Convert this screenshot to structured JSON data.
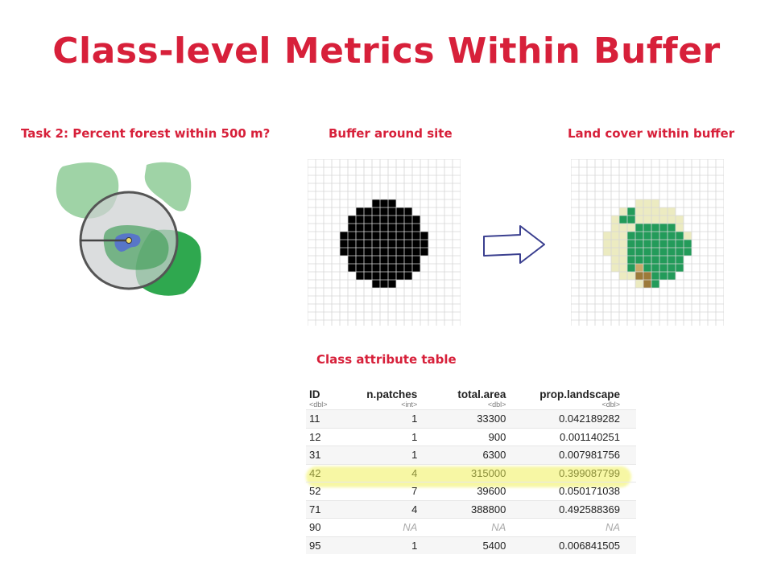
{
  "title": "Class-level Metrics Within Buffer",
  "task_label": "Task 2: Percent forest within 500 m?",
  "buffer_label": "Buffer around site",
  "landcover_label": "Land cover within buffer",
  "table_label": "Class attribute table",
  "table": {
    "columns": [
      {
        "name": "ID",
        "type": "<dbl>"
      },
      {
        "name": "n.patches",
        "type": "<int>"
      },
      {
        "name": "total.area",
        "type": "<dbl>"
      },
      {
        "name": "prop.landscape",
        "type": "<dbl>"
      }
    ],
    "rows": [
      [
        "11",
        "1",
        "33300",
        "0.042189282"
      ],
      [
        "12",
        "1",
        "900",
        "0.001140251"
      ],
      [
        "31",
        "1",
        "6300",
        "0.007981756"
      ],
      [
        "42",
        "4",
        "315000",
        "0.399087799"
      ],
      [
        "52",
        "7",
        "39600",
        "0.050171038"
      ],
      [
        "71",
        "4",
        "388800",
        "0.492588369"
      ],
      [
        "90",
        "NA",
        "NA",
        "NA"
      ],
      [
        "95",
        "1",
        "5400",
        "0.006841505"
      ]
    ],
    "highlight_row": 3
  },
  "colors": {
    "title": "#d7203a",
    "forest_dark": "#239b5a",
    "grass_light": "#ecebc1",
    "crop_tan": "#c8a96a",
    "crop_dark": "#9c7a3a",
    "buffer_black": "#000000",
    "arrow": "#3a3f8f",
    "highlight": "#f7f7a4"
  },
  "icons": {
    "arrow": "right-arrow-icon",
    "site_point": "site-point-icon"
  }
}
